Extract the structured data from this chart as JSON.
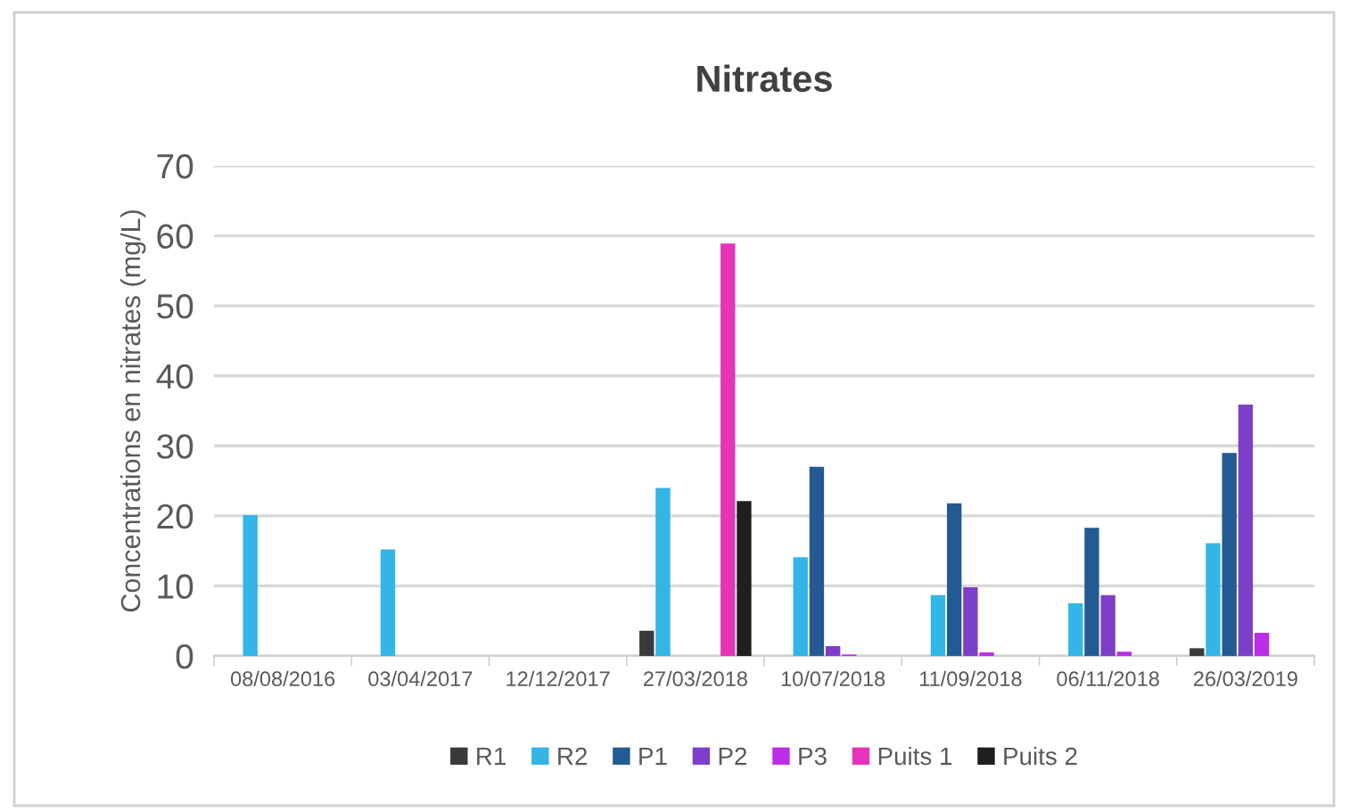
{
  "chart_data": {
    "type": "bar",
    "title": "Nitrates",
    "ylabel": "Concentrations en nitrates (mg/L)",
    "categories": [
      "08/08/2016",
      "03/04/2017",
      "12/12/2017",
      "27/03/2018",
      "10/07/2018",
      "11/09/2018",
      "06/11/2018",
      "26/03/2019"
    ],
    "series": [
      {
        "name": "R1",
        "color": "#3a3a3a",
        "values": [
          null,
          null,
          null,
          3.6,
          null,
          null,
          null,
          1.1
        ]
      },
      {
        "name": "R2",
        "color": "#33b5e5",
        "values": [
          20.1,
          15.2,
          null,
          24.0,
          14.1,
          8.7,
          7.5,
          16.1
        ]
      },
      {
        "name": "P1",
        "color": "#245a93",
        "values": [
          null,
          null,
          null,
          null,
          27.0,
          21.8,
          18.3,
          29.0
        ]
      },
      {
        "name": "P2",
        "color": "#7e3fc8",
        "values": [
          null,
          null,
          null,
          null,
          1.4,
          9.8,
          8.7,
          35.9
        ]
      },
      {
        "name": "P3",
        "color": "#b92ee6",
        "values": [
          null,
          null,
          null,
          null,
          0.2,
          0.5,
          0.6,
          3.3
        ]
      },
      {
        "name": "Puits 1",
        "color": "#e633b8",
        "values": [
          null,
          null,
          null,
          58.9,
          null,
          null,
          null,
          null
        ]
      },
      {
        "name": "Puits 2",
        "color": "#1f1f1f",
        "values": [
          null,
          null,
          null,
          22.1,
          null,
          null,
          null,
          null
        ]
      }
    ],
    "ylim": [
      0,
      70
    ],
    "yticks": [
      0,
      10,
      20,
      30,
      40,
      50,
      60,
      70
    ],
    "grid": "y",
    "legend": "bottom"
  }
}
